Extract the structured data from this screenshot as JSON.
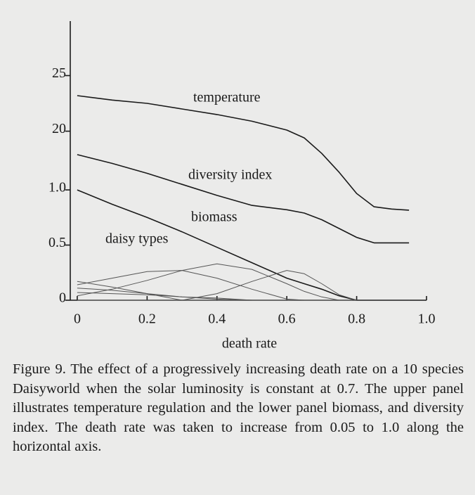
{
  "chart_data": {
    "type": "line",
    "xlabel": "death rate",
    "x": [
      0,
      0.1,
      0.2,
      0.3,
      0.4,
      0.5,
      0.6,
      0.65,
      0.7,
      0.75,
      0.8,
      0.85,
      0.9,
      0.95
    ],
    "xlim": [
      -0.02,
      1.0
    ],
    "xticks": [
      0,
      0.2,
      0.4,
      0.6,
      0.8,
      {
        "value": 1,
        "label": "1.0"
      }
    ],
    "ylim": [
      0,
      2.53
    ],
    "yticks": [
      0,
      0.5,
      {
        "value": 1,
        "label": "1.0"
      }
    ],
    "y2lim": [
      4.8,
      29.9
    ],
    "y2ticks": [
      20,
      25
    ],
    "grid": false,
    "annotations": [
      "daisy types"
    ],
    "series": [
      {
        "name": "temperature",
        "color": "#1a1a1a",
        "axis": "y2",
        "values": [
          23.2,
          22.8,
          22.5,
          22.0,
          21.5,
          20.9,
          20.1,
          19.4,
          18.0,
          16.3,
          14.4,
          13.2,
          13.0,
          12.9
        ]
      },
      {
        "name": "diversity index",
        "color": "#1a1a1a",
        "values": [
          1.32,
          1.24,
          1.15,
          1.05,
          0.95,
          0.86,
          0.82,
          0.79,
          0.73,
          0.65,
          0.57,
          0.52,
          0.52,
          0.52
        ]
      },
      {
        "name": "biomass",
        "color": "#1a1a1a",
        "values": [
          1.0,
          0.87,
          0.75,
          0.62,
          0.48,
          0.34,
          0.2,
          0.15,
          0.1,
          0.04,
          0,
          0,
          0,
          0
        ]
      },
      {
        "color": "#555555",
        "values": [
          0.14,
          0.2,
          0.26,
          0.27,
          0.2,
          0.1,
          0.01,
          0,
          0,
          0,
          0,
          0,
          0,
          0
        ]
      },
      {
        "color": "#555555",
        "values": [
          0.04,
          0.1,
          0.18,
          0.27,
          0.33,
          0.28,
          0.15,
          0.08,
          0.03,
          0,
          0,
          0,
          0,
          0
        ]
      },
      {
        "color": "#555555",
        "values": [
          0,
          0,
          0,
          0,
          0.06,
          0.17,
          0.27,
          0.24,
          0.15,
          0.05,
          0,
          0,
          0,
          0
        ]
      },
      {
        "color": "#555555",
        "values": [
          0.17,
          0.12,
          0.06,
          0,
          0,
          0,
          0,
          0,
          0,
          0,
          0,
          0,
          0,
          0
        ]
      },
      {
        "color": "#555555",
        "values": [
          0.11,
          0.09,
          0.06,
          0.03,
          0.01,
          0,
          0,
          0,
          0,
          0,
          0,
          0,
          0,
          0
        ]
      },
      {
        "color": "#555555",
        "values": [
          0.07,
          0.06,
          0.05,
          0.03,
          0.02,
          0,
          0,
          0,
          0,
          0,
          0,
          0,
          0,
          0
        ]
      }
    ]
  },
  "figure_caption": "Figure 9. The effect of a progressively increasing death rate on a 10 species Daisyworld when the solar luminosity is constant at 0.7. The upper panel illustrates temperature regulation and the lower panel biomass, and diversity index. The death rate was taken to increase from 0.05 to 1.0 along the horizontal axis."
}
